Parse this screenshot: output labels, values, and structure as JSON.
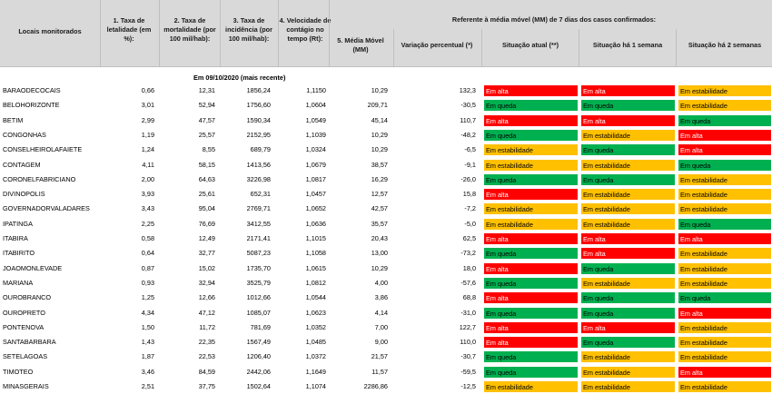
{
  "headers": {
    "locais": "Locais monitorados",
    "letalidade": "1. Taxa de letalidade (em %):",
    "mortalidade": "2. Taxa de mortalidade (por 100 mil/hab):",
    "incidencia": "3. Taxa de incidência (por 100 mil/hab):",
    "velocidade": "4. Velocidade de contágio no tempo (Rt):",
    "referente": "Referente à média móvel (MM) de 7 dias  dos casos confirmados:",
    "media_movel": "5. Média Móvel (MM)",
    "variacao": "Variação percentual (*)",
    "situacao_atual": "Situação atual (**)",
    "situacao_1": "Situação há 1 semana",
    "situacao_2": "Situação há 2 semanas"
  },
  "subtitle": "Em 09/10/2020 (mais recente)",
  "colors": {
    "alta": "#ff0000",
    "queda": "#00b050",
    "estabilidade": "#ffc000",
    "header": "#d9d9d9"
  },
  "status_labels": {
    "alta": "Em alta",
    "queda": "Em queda",
    "estabilidade": "Em estabilidade"
  },
  "rows": [
    {
      "local": "BARAODECOCAIS",
      "letalidade": "0,66",
      "mortalidade": "12,31",
      "incidencia": "1856,24",
      "rt": "1,1150",
      "mm": "10,29",
      "variacao": "132,3",
      "atual": "Em alta",
      "s1": "Em alta",
      "s2": "Em estabilidade"
    },
    {
      "local": "BELOHORIZONTE",
      "letalidade": "3,01",
      "mortalidade": "52,94",
      "incidencia": "1756,60",
      "rt": "1,0604",
      "mm": "209,71",
      "variacao": "-30,5",
      "atual": "Em queda",
      "s1": "Em queda",
      "s2": "Em estabilidade"
    },
    {
      "local": "BETIM",
      "letalidade": "2,99",
      "mortalidade": "47,57",
      "incidencia": "1590,34",
      "rt": "1,0549",
      "mm": "45,14",
      "variacao": "110,7",
      "atual": "Em alta",
      "s1": "Em alta",
      "s2": "Em queda"
    },
    {
      "local": "CONGONHAS",
      "letalidade": "1,19",
      "mortalidade": "25,57",
      "incidencia": "2152,95",
      "rt": "1,1039",
      "mm": "10,29",
      "variacao": "-48,2",
      "atual": "Em queda",
      "s1": "Em estabilidade",
      "s2": "Em alta"
    },
    {
      "local": "CONSELHEIROLAFAIETE",
      "letalidade": "1,24",
      "mortalidade": "8,55",
      "incidencia": "689,79",
      "rt": "1,0324",
      "mm": "10,29",
      "variacao": "-6,5",
      "atual": "Em estabilidade",
      "s1": "Em queda",
      "s2": "Em alta"
    },
    {
      "local": "CONTAGEM",
      "letalidade": "4,11",
      "mortalidade": "58,15",
      "incidencia": "1413,56",
      "rt": "1,0679",
      "mm": "38,57",
      "variacao": "-9,1",
      "atual": "Em estabilidade",
      "s1": "Em estabilidade",
      "s2": "Em queda"
    },
    {
      "local": "CORONELFABRICIANO",
      "letalidade": "2,00",
      "mortalidade": "64,63",
      "incidencia": "3226,98",
      "rt": "1,0817",
      "mm": "16,29",
      "variacao": "-26,0",
      "atual": "Em queda",
      "s1": "Em queda",
      "s2": "Em estabilidade"
    },
    {
      "local": "DIVINOPOLIS",
      "letalidade": "3,93",
      "mortalidade": "25,61",
      "incidencia": "652,31",
      "rt": "1,0457",
      "mm": "12,57",
      "variacao": "15,8",
      "atual": "Em alta",
      "s1": "Em estabilidade",
      "s2": "Em estabilidade"
    },
    {
      "local": "GOVERNADORVALADARES",
      "letalidade": "3,43",
      "mortalidade": "95,04",
      "incidencia": "2769,71",
      "rt": "1,0652",
      "mm": "42,57",
      "variacao": "-7,2",
      "atual": "Em estabilidade",
      "s1": "Em estabilidade",
      "s2": "Em estabilidade"
    },
    {
      "local": "IPATINGA",
      "letalidade": "2,25",
      "mortalidade": "76,69",
      "incidencia": "3412,55",
      "rt": "1,0636",
      "mm": "35,57",
      "variacao": "-5,0",
      "atual": "Em estabilidade",
      "s1": "Em estabilidade",
      "s2": "Em queda"
    },
    {
      "local": "ITABIRA",
      "letalidade": "0,58",
      "mortalidade": "12,49",
      "incidencia": "2171,41",
      "rt": "1,1015",
      "mm": "20,43",
      "variacao": "62,5",
      "atual": "Em alta",
      "s1": "Em alta",
      "s2": "Em alta"
    },
    {
      "local": "ITABIRITO",
      "letalidade": "0,64",
      "mortalidade": "32,77",
      "incidencia": "5087,23",
      "rt": "1,1058",
      "mm": "13,00",
      "variacao": "-73,2",
      "atual": "Em queda",
      "s1": "Em alta",
      "s2": "Em estabilidade"
    },
    {
      "local": "JOAOMONLEVADE",
      "letalidade": "0,87",
      "mortalidade": "15,02",
      "incidencia": "1735,70",
      "rt": "1,0615",
      "mm": "10,29",
      "variacao": "18,0",
      "atual": "Em alta",
      "s1": "Em queda",
      "s2": "Em estabilidade"
    },
    {
      "local": "MARIANA",
      "letalidade": "0,93",
      "mortalidade": "32,94",
      "incidencia": "3525,79",
      "rt": "1,0812",
      "mm": "4,00",
      "variacao": "-57,6",
      "atual": "Em queda",
      "s1": "Em estabilidade",
      "s2": "Em estabilidade"
    },
    {
      "local": "OUROBRANCO",
      "letalidade": "1,25",
      "mortalidade": "12,66",
      "incidencia": "1012,66",
      "rt": "1,0544",
      "mm": "3,86",
      "variacao": "68,8",
      "atual": "Em alta",
      "s1": "Em queda",
      "s2": "Em queda"
    },
    {
      "local": "OUROPRETO",
      "letalidade": "4,34",
      "mortalidade": "47,12",
      "incidencia": "1085,07",
      "rt": "1,0623",
      "mm": "4,14",
      "variacao": "-31,0",
      "atual": "Em queda",
      "s1": "Em queda",
      "s2": "Em alta"
    },
    {
      "local": "PONTENOVA",
      "letalidade": "1,50",
      "mortalidade": "11,72",
      "incidencia": "781,69",
      "rt": "1,0352",
      "mm": "7,00",
      "variacao": "122,7",
      "atual": "Em alta",
      "s1": "Em alta",
      "s2": "Em estabilidade"
    },
    {
      "local": "SANTABARBARA",
      "letalidade": "1,43",
      "mortalidade": "22,35",
      "incidencia": "1567,49",
      "rt": "1,0485",
      "mm": "9,00",
      "variacao": "110,0",
      "atual": "Em alta",
      "s1": "Em queda",
      "s2": "Em estabilidade"
    },
    {
      "local": "SETELAGOAS",
      "letalidade": "1,87",
      "mortalidade": "22,53",
      "incidencia": "1206,40",
      "rt": "1,0372",
      "mm": "21,57",
      "variacao": "-30,7",
      "atual": "Em queda",
      "s1": "Em estabilidade",
      "s2": "Em estabilidade"
    },
    {
      "local": "TIMOTEO",
      "letalidade": "3,46",
      "mortalidade": "84,59",
      "incidencia": "2442,06",
      "rt": "1,1649",
      "mm": "11,57",
      "variacao": "-59,5",
      "atual": "Em queda",
      "s1": "Em estabilidade",
      "s2": "Em alta"
    },
    {
      "local": "MINASGERAIS",
      "letalidade": "2,51",
      "mortalidade": "37,75",
      "incidencia": "1502,64",
      "rt": "1,1074",
      "mm": "2286,86",
      "variacao": "-12,5",
      "atual": "Em estabilidade",
      "s1": "Em estabilidade",
      "s2": "Em estabilidade"
    }
  ]
}
